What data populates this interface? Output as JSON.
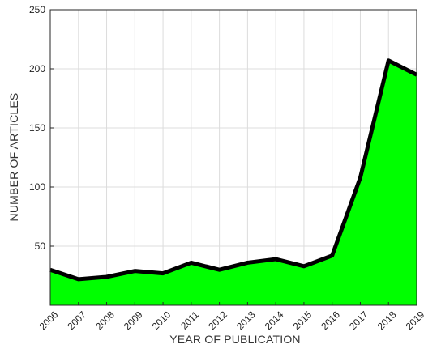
{
  "chart_data": {
    "type": "area",
    "title": "",
    "xlabel": "YEAR OF PUBLICATION",
    "ylabel": "NUMBER OF ARTICLES",
    "x": [
      2006,
      2007,
      2008,
      2009,
      2010,
      2011,
      2012,
      2013,
      2014,
      2015,
      2016,
      2017,
      2018,
      2019
    ],
    "series": [
      {
        "values": [
          30,
          22,
          24,
          29,
          27,
          36,
          30,
          36,
          39,
          33,
          42,
          108,
          207,
          195
        ]
      }
    ],
    "xlim": [
      2006,
      2019
    ],
    "ylim": [
      0,
      250
    ],
    "yticks": [
      50,
      100,
      150,
      200,
      250
    ],
    "grid": true,
    "fill_color": "#00ff00",
    "line_color": "#000000"
  }
}
